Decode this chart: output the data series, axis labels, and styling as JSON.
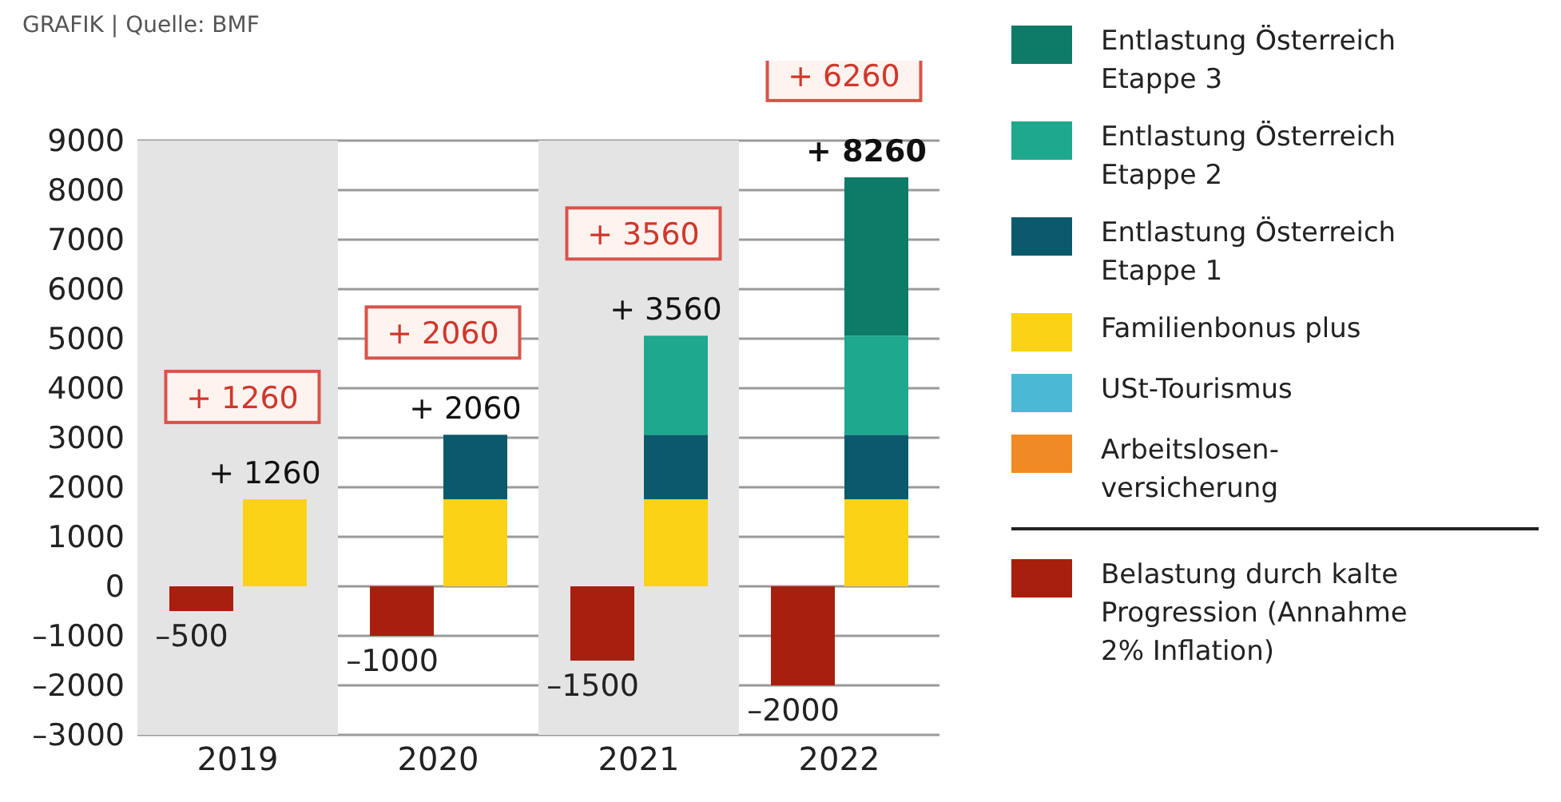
{
  "chart_data": {
    "type": "bar",
    "stacked": true,
    "categories": [
      "2019",
      "2020",
      "2021",
      "2022"
    ],
    "series": [
      {
        "name": "Belastung durch kalte Progression (Annahme 2% Inflation)",
        "color": "#a81f0d",
        "values": [
          -500,
          -1000,
          -1500,
          -2000
        ],
        "value_labels": [
          "–500",
          "–1000",
          "–1500",
          "–2000"
        ]
      },
      {
        "name": "Arbeitslosen-versicherung",
        "color": "#f08a24",
        "values": [
          null,
          null,
          null,
          null
        ]
      },
      {
        "name": "USt-Tourismus",
        "color": "#4bb8d6",
        "values": [
          null,
          null,
          null,
          null
        ]
      },
      {
        "name": "Familienbonus plus",
        "color": "#fbd215",
        "values": [
          1760,
          1760,
          1760,
          1760
        ]
      },
      {
        "name": "Entlastung Österreich Etappe 1",
        "color": "#0b5a6b",
        "values": [
          null,
          1300,
          1300,
          1300
        ]
      },
      {
        "name": "Entlastung Österreich Etappe 2",
        "color": "#1ea88e",
        "values": [
          null,
          null,
          2000,
          2000
        ]
      },
      {
        "name": "Entlastung Österreich Etappe 3",
        "color": "#0e7a68",
        "values": [
          null,
          null,
          null,
          3200
        ]
      }
    ],
    "totals": [
      "+ 1260",
      "+ 2060",
      "+ 3560",
      "+ 6260"
    ],
    "annotations": [
      "GRAFIK | Quelle: BMF",
      {
        "text": "+ 1260",
        "x": "2019",
        "y": 1760
      },
      {
        "text": "+ 2060",
        "x": "2020",
        "y": 3060
      },
      {
        "text": "+ 3560",
        "x": "2021",
        "y": 5060
      },
      {
        "text": "+ 8260",
        "x": "2022",
        "y": 8260
      }
    ],
    "bands": [
      {
        "axis": "x",
        "from": "2019",
        "to": "2019",
        "color": "#e4e4e4"
      },
      {
        "axis": "x",
        "from": "2021",
        "to": "2021",
        "color": "#e4e4e4"
      }
    ],
    "ylim": [
      -3000,
      9000
    ],
    "yticks": [
      {
        "value": -3000,
        "label": "–3000"
      },
      {
        "value": -2000,
        "label": "–2000"
      },
      {
        "value": -1000,
        "label": "–1000"
      },
      0,
      1000,
      2000,
      3000,
      4000,
      5000,
      6000,
      7000,
      8000,
      9000
    ],
    "grid": "y",
    "legend": "right"
  }
}
